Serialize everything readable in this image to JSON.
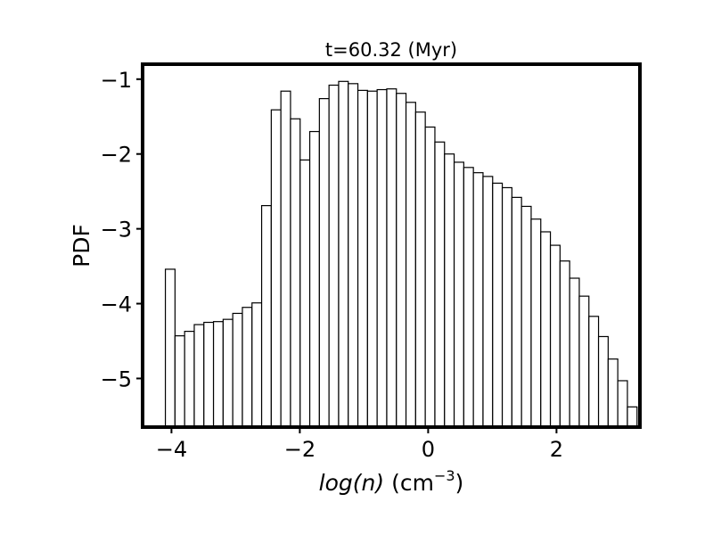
{
  "chart_data": {
    "type": "bar",
    "title": "t=60.32 (Myr)",
    "xlabel": {
      "math": "log(n)",
      "text": " (cm",
      "sup": "−3",
      "close": ")"
    },
    "ylabel": "PDF",
    "xlim": [
      -4.45,
      3.3
    ],
    "ylim": [
      -5.65,
      -0.8
    ],
    "bin_width": 0.15,
    "x_ticks": [
      {
        "value": -4,
        "label": "−4"
      },
      {
        "value": -2,
        "label": "−2"
      },
      {
        "value": 0,
        "label": "0"
      },
      {
        "value": 2,
        "label": "2"
      }
    ],
    "y_ticks": [
      {
        "value": -1,
        "label": "−1"
      },
      {
        "value": -2,
        "label": "−2"
      },
      {
        "value": -3,
        "label": "−3"
      },
      {
        "value": -4,
        "label": "−4"
      },
      {
        "value": -5,
        "label": "−5"
      }
    ],
    "bins": [
      {
        "x": -4.02,
        "y": -3.54
      },
      {
        "x": -3.87,
        "y": -4.43
      },
      {
        "x": -3.72,
        "y": -4.37
      },
      {
        "x": -3.57,
        "y": -4.28
      },
      {
        "x": -3.42,
        "y": -4.25
      },
      {
        "x": -3.27,
        "y": -4.24
      },
      {
        "x": -3.12,
        "y": -4.21
      },
      {
        "x": -2.97,
        "y": -4.13
      },
      {
        "x": -2.82,
        "y": -4.05
      },
      {
        "x": -2.67,
        "y": -3.99
      },
      {
        "x": -2.52,
        "y": -2.69
      },
      {
        "x": -2.37,
        "y": -1.41
      },
      {
        "x": -2.22,
        "y": -1.16
      },
      {
        "x": -2.07,
        "y": -1.53
      },
      {
        "x": -1.92,
        "y": -2.08
      },
      {
        "x": -1.77,
        "y": -1.7
      },
      {
        "x": -1.62,
        "y": -1.26
      },
      {
        "x": -1.47,
        "y": -1.08
      },
      {
        "x": -1.32,
        "y": -1.03
      },
      {
        "x": -1.17,
        "y": -1.06
      },
      {
        "x": -1.02,
        "y": -1.15
      },
      {
        "x": -0.87,
        "y": -1.16
      },
      {
        "x": -0.72,
        "y": -1.14
      },
      {
        "x": -0.57,
        "y": -1.13
      },
      {
        "x": -0.42,
        "y": -1.19
      },
      {
        "x": -0.27,
        "y": -1.31
      },
      {
        "x": -0.12,
        "y": -1.44
      },
      {
        "x": 0.03,
        "y": -1.64
      },
      {
        "x": 0.18,
        "y": -1.84
      },
      {
        "x": 0.33,
        "y": -2.0
      },
      {
        "x": 0.48,
        "y": -2.11
      },
      {
        "x": 0.63,
        "y": -2.18
      },
      {
        "x": 0.78,
        "y": -2.25
      },
      {
        "x": 0.93,
        "y": -2.3
      },
      {
        "x": 1.08,
        "y": -2.39
      },
      {
        "x": 1.23,
        "y": -2.45
      },
      {
        "x": 1.38,
        "y": -2.58
      },
      {
        "x": 1.53,
        "y": -2.7
      },
      {
        "x": 1.68,
        "y": -2.87
      },
      {
        "x": 1.83,
        "y": -3.04
      },
      {
        "x": 1.98,
        "y": -3.22
      },
      {
        "x": 2.13,
        "y": -3.43
      },
      {
        "x": 2.28,
        "y": -3.66
      },
      {
        "x": 2.43,
        "y": -3.9
      },
      {
        "x": 2.58,
        "y": -4.17
      },
      {
        "x": 2.73,
        "y": -4.44
      },
      {
        "x": 2.88,
        "y": -4.74
      },
      {
        "x": 3.03,
        "y": -5.03
      },
      {
        "x": 3.18,
        "y": -5.38
      }
    ]
  }
}
